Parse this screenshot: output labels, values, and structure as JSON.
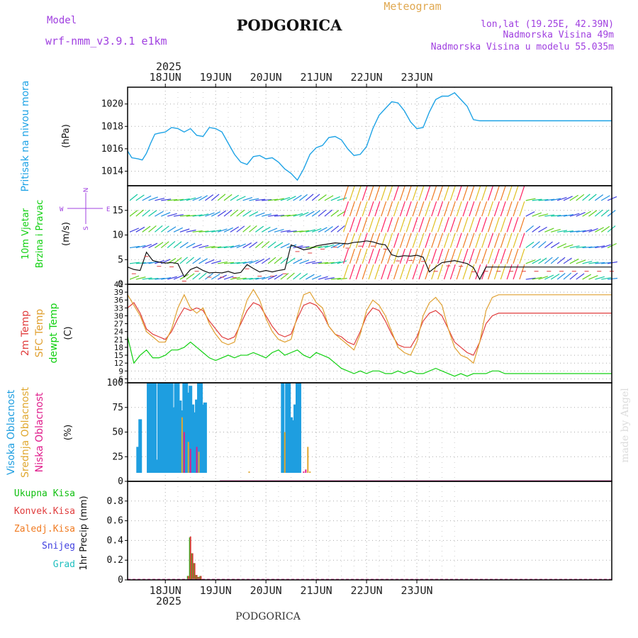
{
  "header": {
    "model_label": "Model",
    "model_name": "wrf-nmm_v3.9.1 e1km",
    "title": "PODGORICA",
    "meteogram_label": "Meteogram",
    "lonlat": "lon,lat (19.25E, 42.39N)",
    "altitude": "Nadmorska Visina 49m",
    "model_altitude": "Nadmorska Visina u modelu 55.035m",
    "year": "2025",
    "footer_title": "PODGORICA",
    "credit": "made by Angel"
  },
  "colors": {
    "pressure": "#1ea3e6",
    "temp2m": "#e03c3c",
    "sfc": "#e0a030",
    "dewpt": "#10d010",
    "high_cloud": "#1e9ee0",
    "mid_cloud": "#e0a830",
    "low_cloud": "#e01e8c",
    "total_precip": "#10c010",
    "conv_precip": "#e03c3c",
    "frozen_precip": "#f07a20",
    "snow": "#4040e0",
    "hail": "#20c0c0",
    "wind_axis_label": "#a040e0"
  },
  "chart_data": [
    {
      "type": "line",
      "panel": "pressure",
      "ylabel": [
        "Pritisak na nivou mora",
        "(hPa)"
      ],
      "ylim": [
        1012.7,
        1021.5
      ],
      "yticks": [
        "1014",
        "1016",
        "1018",
        "1020"
      ],
      "xticks": [
        "18JUN",
        "19JUN",
        "20JUN",
        "21JUN",
        "22JUN",
        "23JUN"
      ],
      "grid": true,
      "series": [
        {
          "x": [
            0,
            2,
            5,
            7,
            9,
            11,
            13,
            15,
            18,
            21,
            24,
            27,
            30,
            33,
            36,
            39,
            42,
            45,
            48,
            51,
            54,
            57,
            60,
            63,
            66,
            69,
            72,
            75,
            78,
            81,
            84,
            87,
            90,
            93,
            96,
            99,
            102,
            105,
            108,
            111,
            114,
            117,
            120,
            123,
            126,
            129,
            132,
            135,
            138,
            141,
            144,
            147,
            150,
            153,
            156,
            159,
            162,
            165,
            168,
            171,
            174,
            177,
            180,
            183,
            186,
            189,
            192,
            195,
            198,
            201,
            204,
            207,
            210,
            213,
            216,
            219,
            222,
            225,
            228,
            231
          ],
          "y": [
            1015.8,
            1015.2,
            1015.1,
            1015.0,
            1015.6,
            1016.5,
            1017.3,
            1017.4,
            1017.5,
            1017.9,
            1017.8,
            1017.5,
            1017.8,
            1017.2,
            1017.1,
            1017.9,
            1017.8,
            1017.5,
            1016.5,
            1015.5,
            1014.8,
            1014.6,
            1015.3,
            1015.4,
            1015.1,
            1015.2,
            1014.8,
            1014.2,
            1013.8,
            1013.2,
            1014.2,
            1015.5,
            1016.1,
            1016.3,
            1017.0,
            1017.1,
            1016.8,
            1016.0,
            1015.4,
            1015.5,
            1016.2,
            1017.8,
            1019.0,
            1019.6,
            1020.2,
            1020.1,
            1019.4,
            1018.4,
            1017.8,
            1017.9,
            1019.3,
            1020.4,
            1020.7,
            1020.7,
            1021.0,
            1020.4,
            1019.8,
            1018.6,
            1018.5,
            1018.5,
            1018.5,
            1018.5,
            1018.5,
            1018.5,
            1018.5,
            1018.5,
            1018.5,
            1018.5,
            1018.5,
            1018.5,
            1018.5,
            1018.5,
            1018.5,
            1018.5,
            1018.5,
            1018.5,
            1018.5,
            1018.5,
            1018.5,
            1018.5
          ]
        }
      ]
    },
    {
      "type": "line",
      "panel": "wind",
      "ylabel": [
        "10m Vjetar",
        "Brzina i Pravac",
        "(m/s)"
      ],
      "direction_key": [
        "W",
        "E",
        "N",
        "S"
      ],
      "ylim": [
        0,
        20
      ],
      "yticks": [
        "0",
        "5",
        "10",
        "15"
      ],
      "grid": true,
      "series": [
        {
          "name": "speed",
          "x": [
            0,
            3,
            6,
            9,
            12,
            15,
            18,
            21,
            24,
            27,
            30,
            33,
            36,
            39,
            42,
            45,
            48,
            51,
            54,
            57,
            60,
            63,
            66,
            69,
            72,
            75,
            78,
            81,
            84,
            87,
            90,
            93,
            96,
            99,
            102,
            105,
            108,
            111,
            114,
            117,
            120,
            123,
            126,
            129,
            132,
            135,
            138,
            141,
            144,
            147,
            150,
            153,
            156,
            159,
            162,
            165,
            168,
            171,
            174,
            177,
            180,
            183,
            186,
            189,
            192,
            195,
            198,
            201,
            204,
            207,
            210,
            213,
            216,
            219,
            222,
            225,
            228,
            231
          ],
          "y": [
            3.5,
            3.0,
            2.8,
            6.5,
            4.8,
            4.5,
            4.3,
            4.4,
            4.2,
            1.5,
            3.0,
            3.5,
            2.8,
            2.3,
            2.4,
            2.3,
            2.6,
            2.2,
            2.4,
            4.0,
            3.2,
            2.5,
            2.8,
            2.5,
            2.8,
            3.0,
            8.0,
            7.5,
            7.0,
            7.2,
            7.8,
            8.0,
            8.2,
            8.4,
            8.3,
            8.2,
            8.5,
            8.6,
            8.8,
            8.6,
            8.2,
            8.0,
            6.0,
            5.6,
            5.8,
            5.7,
            5.9,
            5.5,
            2.5,
            3.5,
            4.4,
            4.6,
            4.8,
            4.5,
            4.2,
            3.4,
            1.0,
            3.5,
            3.5,
            3.5,
            3.5,
            3.5,
            3.5,
            3.5,
            3.5,
            3.5,
            3.5,
            3.5,
            3.5,
            3.5,
            3.5,
            3.5,
            3.5,
            3.5,
            3.5,
            3.5,
            3.5,
            3.5
          ]
        }
      ]
    },
    {
      "type": "line",
      "panel": "temperature",
      "ylabel": [
        "2m Temp",
        "SFC Temp",
        "dewpt Temp",
        "(C)"
      ],
      "ylim": [
        4.5,
        42
      ],
      "yticks": [
        "6",
        "9",
        "12",
        "15",
        "18",
        "21",
        "24",
        "27",
        "30",
        "33",
        "36",
        "39",
        "42"
      ],
      "grid": true,
      "x": [
        0,
        3,
        6,
        9,
        12,
        15,
        18,
        21,
        24,
        27,
        30,
        33,
        36,
        39,
        42,
        45,
        48,
        51,
        54,
        57,
        60,
        63,
        66,
        69,
        72,
        75,
        78,
        81,
        84,
        87,
        90,
        93,
        96,
        99,
        102,
        105,
        108,
        111,
        114,
        117,
        120,
        123,
        126,
        129,
        132,
        135,
        138,
        141,
        144,
        147,
        150,
        153,
        156,
        159,
        162,
        165,
        168,
        171,
        174,
        177,
        180,
        183,
        186,
        189,
        192,
        195,
        198,
        201,
        204,
        207,
        210,
        213,
        216,
        219,
        222,
        225,
        228,
        231
      ],
      "series": [
        {
          "name": "2m Temp",
          "y": [
            33,
            35,
            31,
            25,
            23,
            22,
            21,
            24,
            29,
            33,
            32,
            33,
            32,
            28,
            25,
            22,
            21,
            22,
            27,
            32,
            35,
            34,
            30,
            26,
            23,
            22,
            23,
            29,
            34,
            35,
            34,
            31,
            26,
            23,
            22,
            20,
            19,
            24,
            30,
            33,
            32,
            28,
            23,
            19,
            18,
            18,
            22,
            28,
            31,
            32,
            30,
            25,
            20,
            18,
            16,
            15,
            20,
            27,
            30,
            31,
            31,
            31,
            31,
            31,
            31,
            31,
            31,
            31,
            31,
            31,
            31,
            31,
            31,
            31,
            31,
            31,
            31,
            31
          ]
        },
        {
          "name": "SFC Temp",
          "y": [
            38,
            34,
            30,
            24,
            22,
            20,
            20,
            25,
            33,
            38,
            33,
            31,
            33,
            27,
            23,
            20,
            19,
            20,
            28,
            36,
            40,
            36,
            29,
            24,
            21,
            20,
            21,
            30,
            38,
            39,
            35,
            33,
            26,
            23,
            21,
            19,
            17,
            23,
            32,
            36,
            34,
            30,
            24,
            18,
            16,
            15,
            20,
            30,
            35,
            37,
            34,
            25,
            18,
            15,
            14,
            12,
            20,
            32,
            37,
            38,
            38,
            38,
            38,
            38,
            38,
            38,
            38,
            38,
            38,
            38,
            38,
            38,
            38,
            38,
            38,
            38,
            38,
            38
          ]
        },
        {
          "name": "dewpt Temp",
          "y": [
            22,
            12,
            15,
            17,
            14,
            14,
            15,
            17,
            17,
            18,
            20,
            18,
            16,
            14,
            13,
            14,
            15,
            14,
            15,
            15,
            16,
            15,
            14,
            16,
            17,
            15,
            16,
            17,
            15,
            14,
            16,
            15,
            14,
            12,
            10,
            9,
            8,
            9,
            8,
            9,
            9,
            8,
            8,
            9,
            8,
            9,
            8,
            8,
            9,
            10,
            9,
            8,
            7,
            8,
            7,
            8,
            8,
            8,
            9,
            9,
            8,
            8,
            8,
            8,
            8,
            8,
            8,
            8,
            8,
            8,
            8,
            8,
            8,
            8,
            8,
            8,
            8,
            8
          ]
        }
      ]
    },
    {
      "type": "bar",
      "panel": "cloud",
      "ylabel": [
        "Visoka Oblacnost",
        "Srednja Oblacnost",
        "Niska Oblacnost",
        "(%)"
      ],
      "ylim": [
        0,
        100
      ],
      "yticks": [
        "0",
        "25",
        "50",
        "75",
        "100"
      ],
      "grid": true,
      "series": [
        {
          "name": "Visoka Oblacnost",
          "x": [
            5,
            6,
            10,
            11,
            12,
            13,
            14,
            15,
            16,
            17,
            18,
            19,
            20,
            21,
            22,
            23,
            24,
            25,
            26,
            27,
            28,
            29,
            30,
            31,
            32,
            33,
            34,
            35,
            36,
            37,
            38,
            39,
            40,
            41,
            42,
            43,
            74,
            75,
            76,
            77,
            78,
            79,
            80,
            81,
            82,
            83,
            84,
            85
          ],
          "y": [
            35,
            63,
            100,
            100,
            100,
            100,
            22,
            100,
            100,
            100,
            100,
            100,
            100,
            100,
            75,
            100,
            100,
            82,
            72,
            100,
            100,
            90,
            97,
            78,
            70,
            83,
            100,
            100,
            78,
            80,
            0,
            0,
            0,
            0,
            0,
            0,
            100,
            25,
            100,
            100,
            65,
            62,
            78,
            100,
            100,
            0,
            0,
            0
          ]
        },
        {
          "name": "Srednja Oblacnost",
          "x": [
            1,
            26,
            29,
            34,
            58,
            75,
            86,
            87
          ],
          "y": [
            7,
            65,
            40,
            30,
            10,
            50,
            35,
            10
          ]
        },
        {
          "name": "Niska Oblacnost",
          "x": [
            27,
            30,
            33,
            84,
            85,
            86
          ],
          "y": [
            50,
            33,
            35,
            10,
            12,
            8
          ]
        }
      ]
    },
    {
      "type": "bar",
      "panel": "precip",
      "ylabel": [
        "1hr Precip (mm)"
      ],
      "legend": [
        "Ukupna Kisa",
        "Konvek.Kisa",
        "Zaledj.Kisa",
        "Snijeg",
        "Grad"
      ],
      "ylim": [
        0,
        1.0
      ],
      "yticks": [
        "0",
        "0.2",
        "0.4",
        "0.6",
        "0.8"
      ],
      "xticks": [
        "18JUN",
        "19JUN",
        "20JUN",
        "21JUN",
        "22JUN",
        "23JUN"
      ],
      "grid": true,
      "series": [
        {
          "name": "Ukupna Kisa",
          "x": [
            29,
            30,
            31,
            32,
            33,
            34,
            35
          ],
          "y": [
            0.04,
            0.43,
            0.27,
            0.17,
            0.05,
            0.03,
            0.04
          ]
        },
        {
          "name": "Konvek.Kisa",
          "x": [
            29,
            30,
            31,
            32,
            33,
            34,
            35
          ],
          "y": [
            0.04,
            0.44,
            0.27,
            0.17,
            0.05,
            0.03,
            0.04
          ]
        }
      ]
    }
  ]
}
